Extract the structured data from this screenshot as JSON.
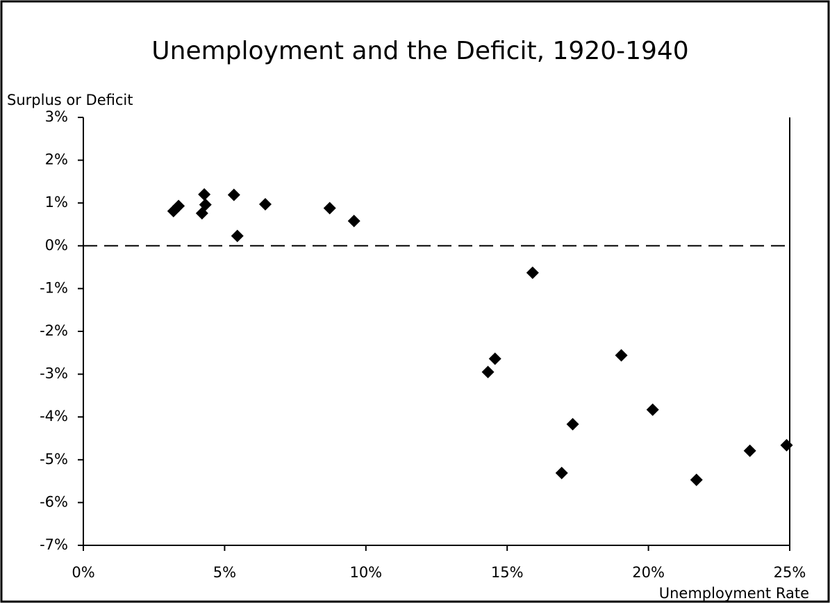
{
  "chart_data": {
    "type": "scatter",
    "title": "Unemployment and the Deficit, 1920-1940",
    "ylabel": "Surplus or Deficit",
    "xlabel": "Unemployment Rate",
    "color": "#000000",
    "x": [
      3.19,
      3.37,
      4.28,
      4.2,
      4.32,
      5.33,
      5.45,
      6.44,
      8.72,
      9.58,
      15.9,
      14.32,
      14.57,
      19.04,
      20.15,
      17.32,
      16.93,
      21.7,
      23.59,
      24.89
    ],
    "values": [
      0.81,
      0.93,
      1.2,
      0.76,
      0.96,
      1.19,
      0.23,
      0.97,
      0.88,
      0.58,
      -0.63,
      -2.95,
      -2.64,
      -2.56,
      -3.83,
      -4.17,
      -5.31,
      -5.47,
      -4.79,
      -4.66
    ],
    "xlim": [
      0,
      25
    ],
    "xticks": [
      {
        "value": 0,
        "label": "0%"
      },
      {
        "value": 5,
        "label": "5%"
      },
      {
        "value": 10,
        "label": "10%"
      },
      {
        "value": 15,
        "label": "15%"
      },
      {
        "value": 20,
        "label": "20%"
      },
      {
        "value": 25,
        "label": "25%"
      }
    ],
    "ylim": [
      -7,
      3
    ],
    "yticks": [
      {
        "value": 3,
        "label": "3%"
      },
      {
        "value": 2,
        "label": "2%"
      },
      {
        "value": 1,
        "label": "1%"
      },
      {
        "value": 0,
        "label": "0%"
      },
      {
        "value": -1,
        "label": "-1%"
      },
      {
        "value": -2,
        "label": "-2%"
      },
      {
        "value": -3,
        "label": "-3%"
      },
      {
        "value": -4,
        "label": "-4%"
      },
      {
        "value": -5,
        "label": "-5%"
      },
      {
        "value": -6,
        "label": "-6%"
      },
      {
        "value": -7,
        "label": "-7%"
      }
    ],
    "reference_line": 0
  }
}
